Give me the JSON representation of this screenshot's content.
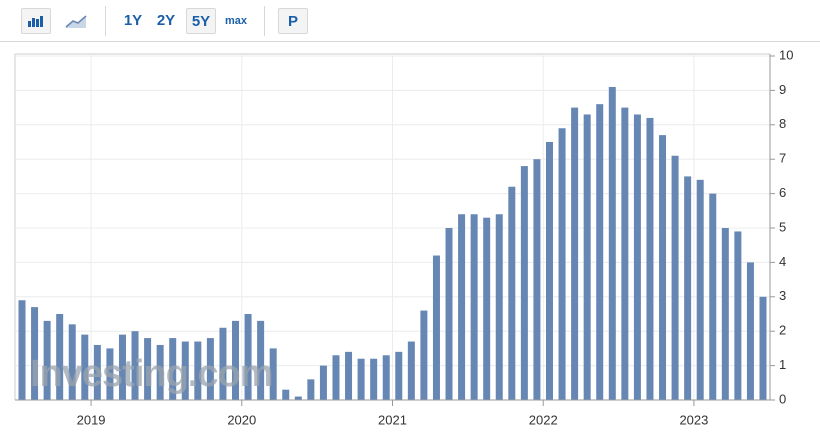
{
  "toolbar": {
    "ranges": [
      "1Y",
      "2Y",
      "5Y",
      "max"
    ],
    "selected": "5Y",
    "extra": "P"
  },
  "watermark": "Investing.com",
  "chart_data": {
    "type": "bar",
    "categories": [
      null,
      null,
      null,
      null,
      null,
      null,
      null,
      null,
      null,
      null,
      null,
      null,
      null,
      null,
      null,
      null,
      null,
      null,
      null,
      null,
      null,
      null,
      null,
      null,
      null,
      null,
      null,
      null,
      null,
      null,
      null,
      null,
      null,
      null,
      null,
      null,
      null,
      null,
      null,
      null,
      null,
      null,
      null,
      null,
      null,
      null,
      null,
      null,
      null,
      null,
      null,
      null,
      null,
      null,
      null,
      null,
      null,
      null,
      null,
      null
    ],
    "values": [
      2.9,
      2.7,
      2.3,
      2.5,
      2.2,
      1.9,
      1.6,
      1.5,
      1.9,
      2.0,
      1.8,
      1.6,
      1.8,
      1.7,
      1.7,
      1.8,
      2.1,
      2.3,
      2.5,
      2.3,
      1.5,
      0.3,
      0.1,
      0.6,
      1.0,
      1.3,
      1.4,
      1.2,
      1.2,
      1.3,
      1.4,
      1.7,
      2.6,
      4.2,
      5.0,
      5.4,
      5.4,
      5.3,
      5.4,
      6.2,
      6.8,
      7.0,
      7.5,
      7.9,
      8.5,
      8.3,
      8.6,
      9.1,
      8.5,
      8.3,
      8.2,
      7.7,
      7.1,
      6.5,
      6.4,
      6.0,
      5.0,
      4.9,
      4.0,
      3.0
    ],
    "color": "#6687b3",
    "ylim": [
      0,
      10
    ],
    "yticks": [
      0,
      1,
      2,
      3,
      4,
      5,
      6,
      7,
      8,
      9,
      10
    ],
    "xticks": [
      {
        "value": 6,
        "label": "2019"
      },
      {
        "value": 18,
        "label": "2020"
      },
      {
        "value": 30,
        "label": "2021"
      },
      {
        "value": 42,
        "label": "2022"
      },
      {
        "value": 54,
        "label": "2023"
      }
    ],
    "grid": true
  }
}
